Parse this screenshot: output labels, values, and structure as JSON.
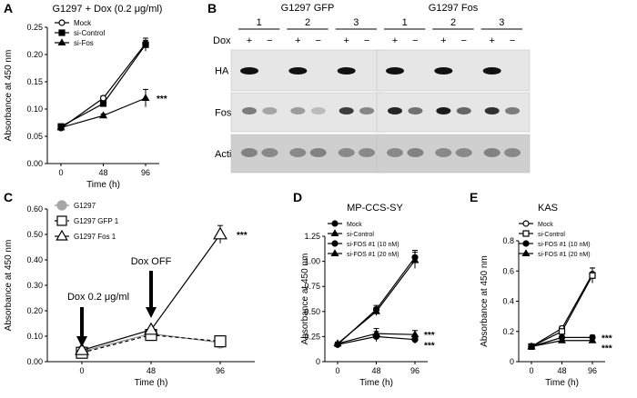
{
  "panel_labels": [
    "A",
    "B",
    "C",
    "D",
    "E"
  ],
  "chart_data": [
    {
      "id": "A",
      "type": "line",
      "title": "G1297 + Dox (0.2 μg/ml)",
      "xlabel": "Time (h)",
      "ylabel": "Absorbance at 450 nm",
      "x": [
        0,
        48,
        96
      ],
      "ylim": [
        0,
        0.25
      ],
      "yticks": [
        "0.00",
        "0.05",
        "0.10",
        "0.15",
        "0.20",
        "0.25"
      ],
      "series": [
        {
          "name": "Mock",
          "marker": "open-circle",
          "values": [
            0.065,
            0.12,
            0.22
          ],
          "err": [
            0.003,
            0.004,
            0.006
          ]
        },
        {
          "name": "si-Control",
          "marker": "filled-square",
          "values": [
            0.068,
            0.11,
            0.218
          ],
          "err": [
            0.003,
            0.004,
            0.012
          ]
        },
        {
          "name": "si-Fos",
          "marker": "filled-triangle",
          "values": [
            0.066,
            0.088,
            0.12
          ],
          "err": [
            0.003,
            0.003,
            0.016
          ]
        }
      ],
      "annotations": [
        "***"
      ]
    },
    {
      "id": "C",
      "type": "line",
      "title": "",
      "xlabel": "Time (h)",
      "ylabel": "Absorbance at 450 nm",
      "x": [
        0,
        48,
        96
      ],
      "ylim": [
        0,
        0.6
      ],
      "yticks": [
        "0.00",
        "0.10",
        "0.20",
        "0.30",
        "0.40",
        "0.50",
        "0.60"
      ],
      "series": [
        {
          "name": "G1297",
          "marker": "gray-circle",
          "values": [
            0.04,
            0.11,
            0.075
          ],
          "err": [
            0.005,
            0.006,
            0.005
          ]
        },
        {
          "name": "G1297 GFP 1",
          "marker": "open-square-dashed",
          "values": [
            0.035,
            0.105,
            0.08
          ],
          "err": [
            0.005,
            0.006,
            0.005
          ]
        },
        {
          "name": "G1297 Fos 1",
          "marker": "open-triangle",
          "values": [
            0.045,
            0.125,
            0.5
          ],
          "err": [
            0.005,
            0.006,
            0.035
          ]
        }
      ],
      "annotations": [
        "***",
        "Dox 0.2 μg/ml",
        "Dox OFF"
      ]
    },
    {
      "id": "D",
      "type": "line",
      "title": "MP-CCS-SY",
      "xlabel": "Time (h)",
      "ylabel": "Absorbance at 450 nm",
      "x": [
        0,
        48,
        96
      ],
      "ylim": [
        0,
        1.25
      ],
      "yticks": [
        "0",
        "0.25",
        "0.50",
        "0.75",
        "1.00",
        "1.25"
      ],
      "series": [
        {
          "name": "Mock",
          "marker": "filled-circle",
          "values": [
            0.17,
            0.52,
            1.04
          ],
          "err": [
            0.015,
            0.04,
            0.07
          ]
        },
        {
          "name": "si-Control",
          "marker": "filled-triangle",
          "values": [
            0.18,
            0.5,
            1.01
          ],
          "err": [
            0.015,
            0.04,
            0.08
          ]
        },
        {
          "name": "si-FOS #1 (10 nM)",
          "marker": "filled-circle",
          "values": [
            0.17,
            0.25,
            0.22
          ],
          "err": [
            0.015,
            0.05,
            0.04
          ]
        },
        {
          "name": "si-FOS #1 (20 nM)",
          "marker": "filled-triangle",
          "values": [
            0.18,
            0.28,
            0.27
          ],
          "err": [
            0.015,
            0.05,
            0.04
          ]
        }
      ],
      "annotations": [
        "***",
        "***"
      ]
    },
    {
      "id": "E",
      "type": "line",
      "title": "KAS",
      "xlabel": "Time (h)",
      "ylabel": "Absorbance at 450 nm",
      "x": [
        0,
        48,
        96
      ],
      "ylim": [
        0,
        0.8
      ],
      "yticks": [
        "0",
        "0.2",
        "0.4",
        "0.6",
        "0.8"
      ],
      "series": [
        {
          "name": "Mock",
          "marker": "open-circle",
          "values": [
            0.1,
            0.22,
            0.58
          ],
          "err": [
            0.01,
            0.015,
            0.04
          ]
        },
        {
          "name": "si-Control",
          "marker": "open-square",
          "values": [
            0.1,
            0.2,
            0.57
          ],
          "err": [
            0.01,
            0.015,
            0.05
          ]
        },
        {
          "name": "si-FOS #1 (10 nM)",
          "marker": "filled-circle",
          "values": [
            0.1,
            0.16,
            0.16
          ],
          "err": [
            0.01,
            0.01,
            0.015
          ]
        },
        {
          "name": "si-FOS #1 (20 nM)",
          "marker": "filled-triangle",
          "values": [
            0.1,
            0.14,
            0.14
          ],
          "err": [
            0.01,
            0.01,
            0.015
          ]
        }
      ],
      "annotations": [
        "***",
        "***"
      ]
    }
  ],
  "blot": {
    "id": "B",
    "groups": [
      {
        "title": "G1297 GFP",
        "lanes": [
          "1",
          "2",
          "3"
        ]
      },
      {
        "title": "G1297 Fos",
        "lanes": [
          "1",
          "2",
          "3"
        ]
      }
    ],
    "dox_label": "Dox",
    "dox_signs": [
      "+",
      "−",
      "+",
      "−",
      "+",
      "−",
      "+",
      "−",
      "+",
      "−",
      "+",
      "−"
    ],
    "rows": [
      "HA",
      "Fos",
      "Actin"
    ]
  }
}
